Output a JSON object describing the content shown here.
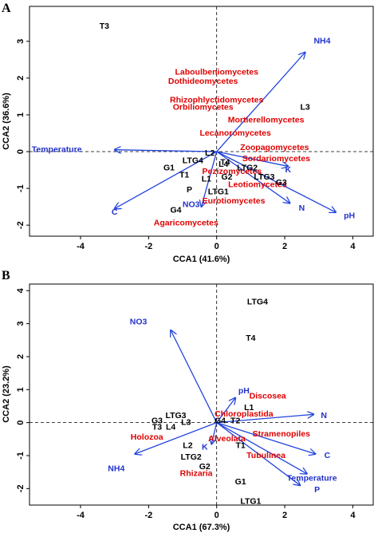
{
  "colors": {
    "site": "#000000",
    "taxon": "#e00000",
    "env": "#2233cc",
    "arrow": "#2244dd"
  },
  "chart_data": [
    {
      "type": "scatter",
      "panel": "A",
      "xlabel": "CCA1 (41.6%)",
      "ylabel": "CCA2 (36.6%)",
      "xlim": [
        -5.5,
        4.6
      ],
      "ylim": [
        -2.3,
        3.95
      ],
      "x_ticks": [
        -4,
        -2,
        0,
        2,
        4
      ],
      "y_ticks": [
        -2,
        -1,
        0,
        1,
        2,
        3
      ],
      "grid": false,
      "reference_lines": "dashed lines at x=0 and y=0",
      "sites": [
        {
          "label": "T3",
          "x": -3.3,
          "y": 3.4
        },
        {
          "label": "L3",
          "x": 2.6,
          "y": 1.2
        },
        {
          "label": "L2",
          "x": -0.2,
          "y": -0.05
        },
        {
          "label": "G1",
          "x": -1.4,
          "y": -0.45
        },
        {
          "label": "LTG4",
          "x": -0.7,
          "y": -0.25
        },
        {
          "label": "L4",
          "x": 0.2,
          "y": -0.35
        },
        {
          "label": "T4",
          "x": 0.25,
          "y": -0.3
        },
        {
          "label": "LTG2",
          "x": 0.9,
          "y": -0.45
        },
        {
          "label": "T1",
          "x": -0.95,
          "y": -0.65
        },
        {
          "label": "L1",
          "x": -0.3,
          "y": -0.75
        },
        {
          "label": "G2",
          "x": 0.3,
          "y": -0.7
        },
        {
          "label": "LTG3",
          "x": 1.4,
          "y": -0.7
        },
        {
          "label": "G3",
          "x": 1.9,
          "y": -0.85
        },
        {
          "label": "P",
          "x": -0.8,
          "y": -1.05
        },
        {
          "label": "LTG1",
          "x": 0.05,
          "y": -1.1
        },
        {
          "label": "G4",
          "x": -1.2,
          "y": -1.6
        }
      ],
      "taxa": [
        {
          "label": "Laboulbeniomycetes",
          "x": 0,
          "y": 2.15
        },
        {
          "label": "Dothideomycetes",
          "x": -0.4,
          "y": 1.9
        },
        {
          "label": "Rhizophlyctidomycetes",
          "x": 0,
          "y": 1.4
        },
        {
          "label": "Orbiliomycetes",
          "x": -0.4,
          "y": 1.2
        },
        {
          "label": "Mortierellomycetes",
          "x": 1.45,
          "y": 0.85
        },
        {
          "label": "Lecanoromycetes",
          "x": 0.55,
          "y": 0.5
        },
        {
          "label": "Zoopagomycetes",
          "x": 1.7,
          "y": 0.1
        },
        {
          "label": "Sordariomycetes",
          "x": 1.75,
          "y": -0.2
        },
        {
          "label": "Pezizomycetes",
          "x": 0.45,
          "y": -0.55
        },
        {
          "label": "Leotiomycetes",
          "x": 1.2,
          "y": -0.9
        },
        {
          "label": "Eurotiomycetes",
          "x": 0.5,
          "y": -1.35
        },
        {
          "label": "Agaricomycetes",
          "x": -0.9,
          "y": -1.95
        }
      ],
      "env": [
        {
          "label": "NH4",
          "x": 2.6,
          "y": 2.7,
          "label_x": 3.1,
          "label_y": 3.0
        },
        {
          "label": "Temperature",
          "x": -3.0,
          "y": 0.05,
          "label_x": -4.7,
          "label_y": 0.05
        },
        {
          "label": "C",
          "x": -3.0,
          "y": -1.55,
          "label_x": -3.0,
          "label_y": -1.65
        },
        {
          "label": "K",
          "x": 2.1,
          "y": -0.4,
          "label_x": 2.1,
          "label_y": -0.5
        },
        {
          "label": "N",
          "x": 2.15,
          "y": -1.4,
          "label_x": 2.5,
          "label_y": -1.55
        },
        {
          "label": "pH",
          "x": 3.5,
          "y": -1.65,
          "label_x": 3.9,
          "label_y": -1.75
        },
        {
          "label": "NO3",
          "x": -0.45,
          "y": -1.5,
          "label_x": -0.75,
          "label_y": -1.45
        }
      ]
    },
    {
      "type": "scatter",
      "panel": "B",
      "xlabel": "CCA1 (67.3%)",
      "ylabel": "CCA2 (23.2%)",
      "xlim": [
        -5.5,
        4.6
      ],
      "ylim": [
        -2.5,
        4.2
      ],
      "x_ticks": [
        -4,
        -2,
        0,
        2,
        4
      ],
      "y_ticks": [
        -2,
        -1,
        0,
        1,
        2,
        3,
        4
      ],
      "grid": false,
      "reference_lines": "dashed lines at x=0 and y=0",
      "sites": [
        {
          "label": "LTG4",
          "x": 1.2,
          "y": 3.65
        },
        {
          "label": "T4",
          "x": 1.0,
          "y": 2.55
        },
        {
          "label": "L1",
          "x": 0.95,
          "y": 0.45
        },
        {
          "label": "G3",
          "x": -1.75,
          "y": 0.05
        },
        {
          "label": "LTG3",
          "x": -1.2,
          "y": 0.2
        },
        {
          "label": "L3",
          "x": -0.9,
          "y": 0.0
        },
        {
          "label": "T3",
          "x": -1.75,
          "y": -0.15
        },
        {
          "label": "L4",
          "x": -1.35,
          "y": -0.15
        },
        {
          "label": "G4",
          "x": 0.1,
          "y": 0.05
        },
        {
          "label": "T2",
          "x": 0.55,
          "y": 0.05
        },
        {
          "label": "L2",
          "x": -0.85,
          "y": -0.7
        },
        {
          "label": "T1",
          "x": 0.7,
          "y": -0.7
        },
        {
          "label": "LTG2",
          "x": -0.75,
          "y": -1.05
        },
        {
          "label": "G2",
          "x": -0.35,
          "y": -1.35
        },
        {
          "label": "G1",
          "x": 0.7,
          "y": -1.8
        },
        {
          "label": "LTG1",
          "x": 1.0,
          "y": -2.4
        }
      ],
      "taxa": [
        {
          "label": "Discosea",
          "x": 1.5,
          "y": 0.8
        },
        {
          "label": "Chloroplastida",
          "x": 0.8,
          "y": 0.25
        },
        {
          "label": "Stramenopiles",
          "x": 1.9,
          "y": -0.35
        },
        {
          "label": "Alveolata",
          "x": 0.3,
          "y": -0.5
        },
        {
          "label": "Holozoa",
          "x": -2.05,
          "y": -0.45
        },
        {
          "label": "Tubulinea",
          "x": 1.45,
          "y": -1.0
        },
        {
          "label": "Rhizaria",
          "x": -0.6,
          "y": -1.55
        }
      ],
      "env": [
        {
          "label": "NO3",
          "x": -1.35,
          "y": 2.8,
          "label_x": -2.3,
          "label_y": 3.05
        },
        {
          "label": "pH",
          "x": 0.55,
          "y": 0.75,
          "label_x": 0.8,
          "label_y": 0.95
        },
        {
          "label": "N",
          "x": 2.85,
          "y": 0.25,
          "label_x": 3.15,
          "label_y": 0.2
        },
        {
          "label": "NH4",
          "x": -2.4,
          "y": -0.95,
          "label_x": -2.95,
          "label_y": -1.4
        },
        {
          "label": "K",
          "x": -0.15,
          "y": -0.65,
          "label_x": -0.35,
          "label_y": -0.75
        },
        {
          "label": "C",
          "x": 2.9,
          "y": -0.95,
          "label_x": 3.25,
          "label_y": -1.0
        },
        {
          "label": "Temperature",
          "x": 2.65,
          "y": -1.55,
          "label_x": 2.8,
          "label_y": -1.7
        },
        {
          "label": "P",
          "x": 2.45,
          "y": -1.9,
          "label_x": 2.95,
          "label_y": -2.05
        }
      ]
    }
  ]
}
